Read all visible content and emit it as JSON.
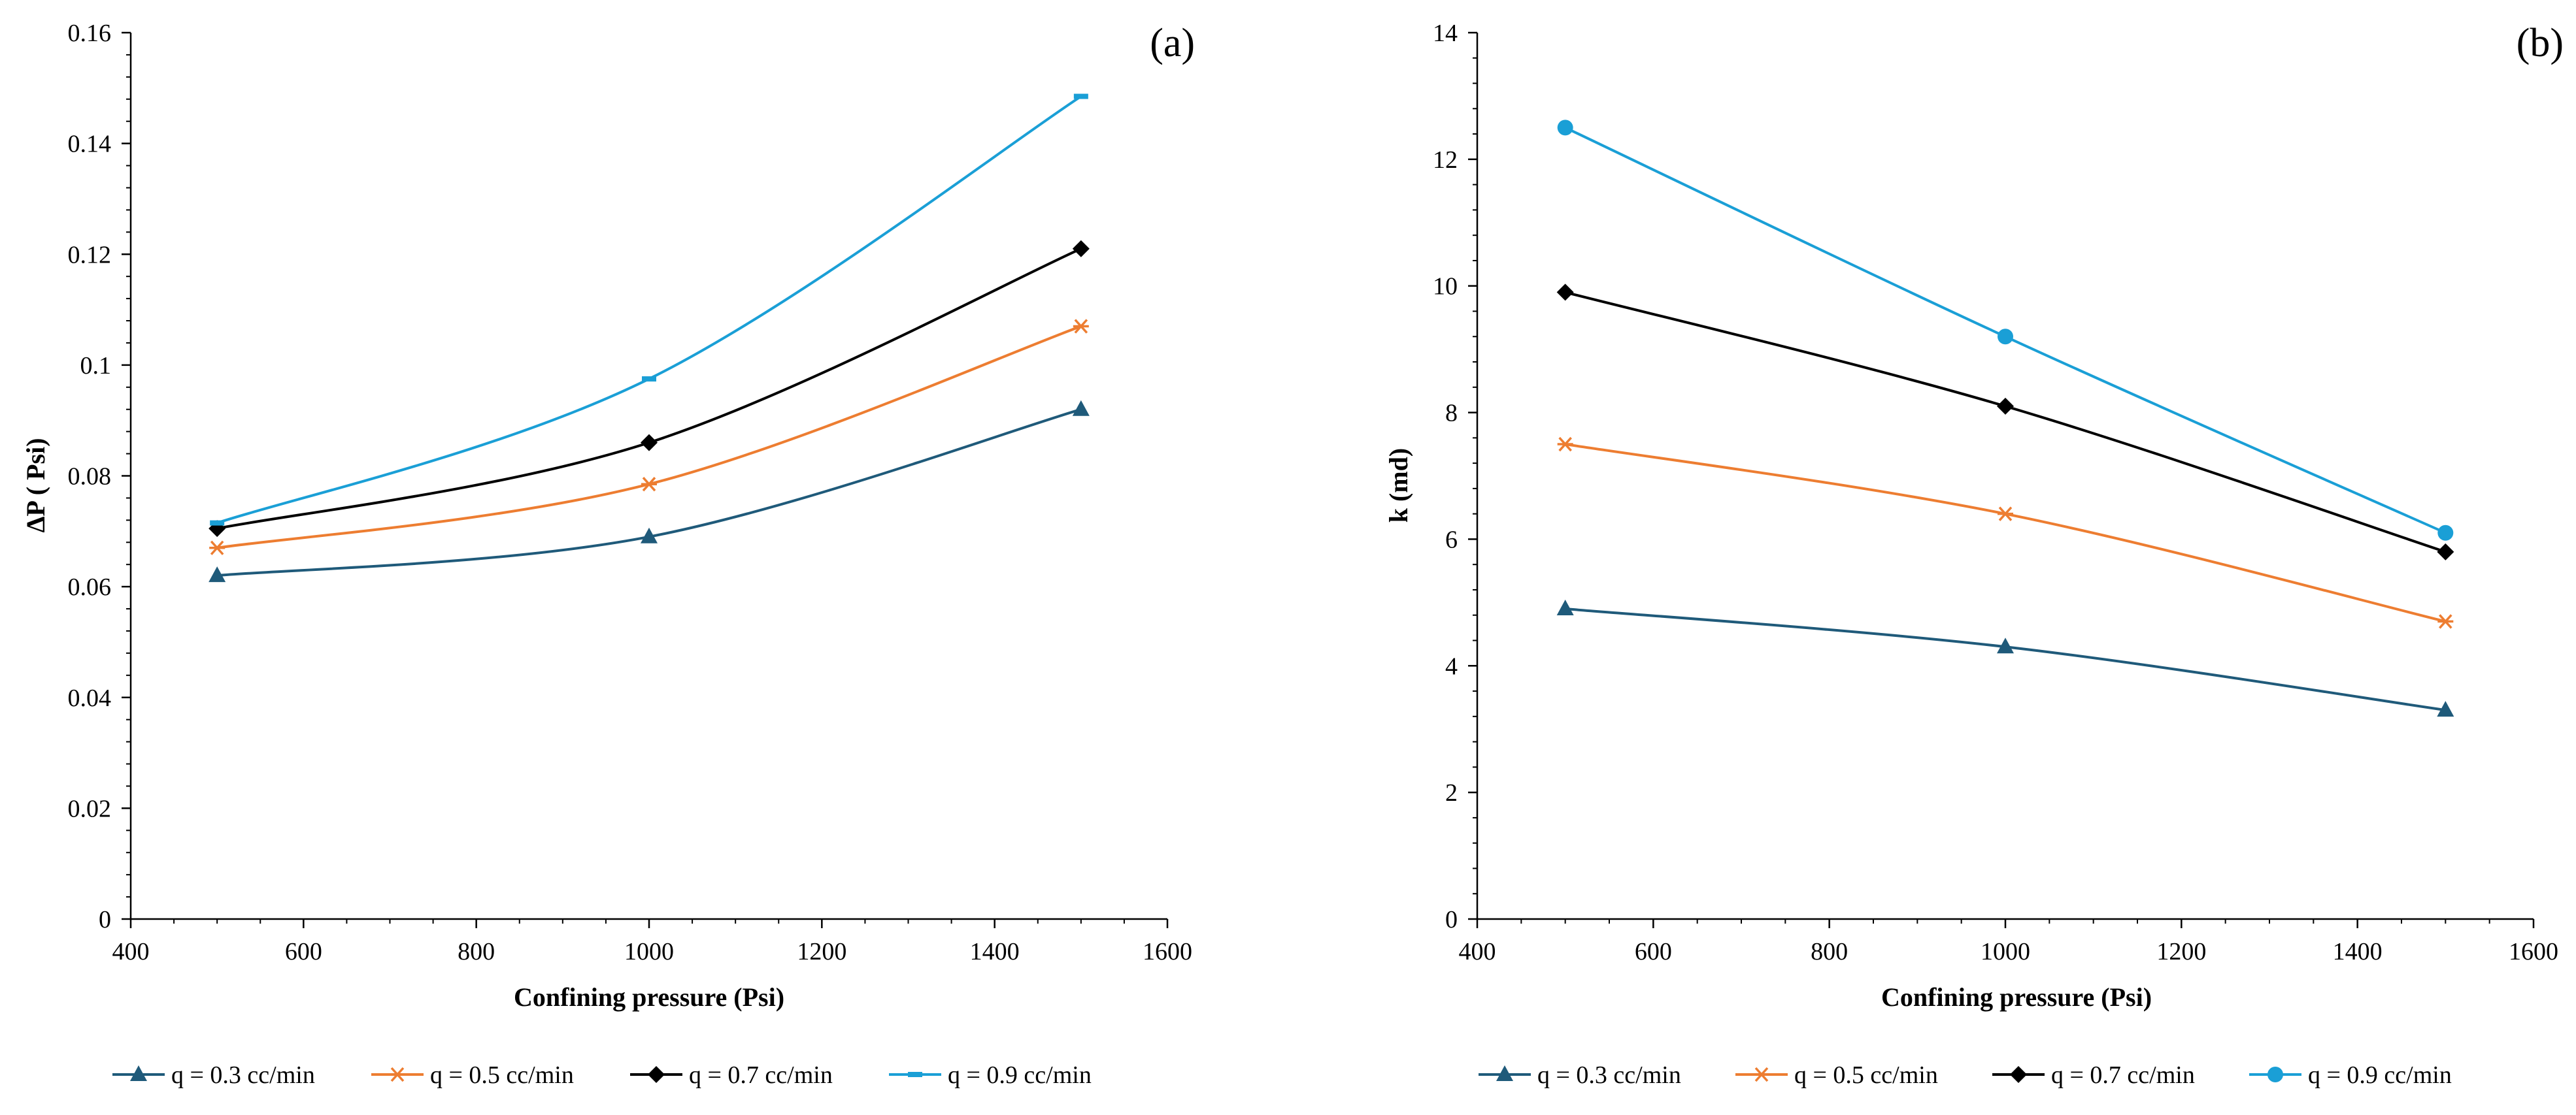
{
  "chart_data": [
    {
      "type": "line",
      "panel_label": "(a)",
      "xlabel": "Confining pressure (Psi)",
      "ylabel": "ΔP ( Psi)",
      "xlim": [
        400,
        1600
      ],
      "ylim": [
        0,
        0.16
      ],
      "xticks": [
        400,
        600,
        800,
        1000,
        1200,
        1400,
        1600
      ],
      "yticks": [
        0,
        0.02,
        0.04,
        0.06,
        0.08,
        0.1,
        0.12,
        0.14,
        0.16
      ],
      "x": [
        500,
        1000,
        1500
      ],
      "grid": false,
      "legend_position": "bottom",
      "series": [
        {
          "name": "q = 0.3 cc/min",
          "values": [
            0.062,
            0.069,
            0.092
          ],
          "color": "#1f5a7a",
          "marker": "triangle"
        },
        {
          "name": "q = 0.5 cc/min",
          "values": [
            0.067,
            0.0785,
            0.107
          ],
          "color": "#ed7d31",
          "marker": "asterisk"
        },
        {
          "name": "q = 0.7 cc/min",
          "values": [
            0.0705,
            0.086,
            0.121
          ],
          "color": "#000000",
          "marker": "diamond"
        },
        {
          "name": "q = 0.9 cc/min",
          "values": [
            0.0715,
            0.0975,
            0.1485
          ],
          "color": "#1a9fd6",
          "marker": "dash"
        }
      ]
    },
    {
      "type": "line",
      "panel_label": "(b)",
      "xlabel": "Confining pressure (Psi)",
      "ylabel": "k (md)",
      "xlim": [
        400,
        1600
      ],
      "ylim": [
        0,
        14
      ],
      "xticks": [
        400,
        600,
        800,
        1000,
        1200,
        1400,
        1600
      ],
      "yticks": [
        0,
        2,
        4,
        6,
        8,
        10,
        12,
        14
      ],
      "x": [
        500,
        1000,
        1500
      ],
      "grid": false,
      "legend_position": "bottom",
      "series": [
        {
          "name": "q = 0.3 cc/min",
          "values": [
            4.9,
            4.3,
            3.3
          ],
          "color": "#1f5a7a",
          "marker": "triangle"
        },
        {
          "name": "q = 0.5 cc/min",
          "values": [
            7.5,
            6.4,
            4.7
          ],
          "color": "#ed7d31",
          "marker": "asterisk"
        },
        {
          "name": "q = 0.7 cc/min",
          "values": [
            9.9,
            8.1,
            5.8
          ],
          "color": "#000000",
          "marker": "diamond"
        },
        {
          "name": "q = 0.9 cc/min",
          "values": [
            12.5,
            9.2,
            6.1
          ],
          "color": "#1a9fd6",
          "marker": "circle"
        }
      ]
    }
  ]
}
